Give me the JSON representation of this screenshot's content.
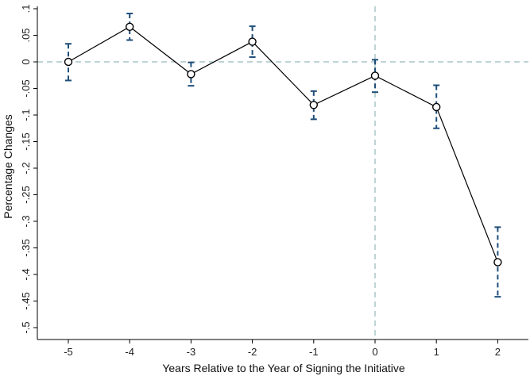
{
  "chart_data": {
    "type": "line",
    "title": "",
    "xlabel": "Years Relative to the Year of Signing the Initiative",
    "ylabel": "Percentage Changes",
    "xlim": [
      -5.5,
      2.5
    ],
    "ylim": [
      -0.5,
      0.1
    ],
    "x_ticks": [
      -5,
      -4,
      -3,
      -2,
      -1,
      0,
      1,
      2
    ],
    "x_tick_labels": [
      "-5",
      "-4",
      "-3",
      "-2",
      "-1",
      "0",
      "1",
      "2"
    ],
    "y_ticks": [
      0.1,
      0.05,
      0,
      -0.05,
      -0.1,
      -0.15,
      -0.2,
      -0.25,
      -0.3,
      -0.35,
      -0.4,
      -0.45,
      -0.5
    ],
    "y_tick_labels": [
      ".1",
      ".05",
      "0",
      "-.05",
      "-.1",
      "-.15",
      "-.2",
      "-.25",
      "-.3",
      "-.35",
      "-.4",
      "-.45",
      "-.5"
    ],
    "reference_lines": {
      "y": 0,
      "x": 0,
      "style": "dashed"
    },
    "series": [
      {
        "x": [
          -5,
          -4,
          -3,
          -2,
          -1,
          0,
          1,
          2
        ],
        "y": [
          0.0,
          0.066,
          -0.023,
          0.038,
          -0.081,
          -0.026,
          -0.085,
          -0.377
        ],
        "ci_low": [
          -0.035,
          0.041,
          -0.045,
          0.009,
          -0.108,
          -0.057,
          -0.125,
          -0.442
        ],
        "ci_high": [
          0.034,
          0.091,
          -0.001,
          0.067,
          -0.055,
          0.004,
          -0.044,
          -0.311
        ]
      }
    ],
    "colors": {
      "line": "#000000",
      "marker": "#000000",
      "ci": "#1f4e79",
      "reference": "#7fa8a8",
      "axis": "#000000"
    },
    "grid": false,
    "legend": "none"
  }
}
